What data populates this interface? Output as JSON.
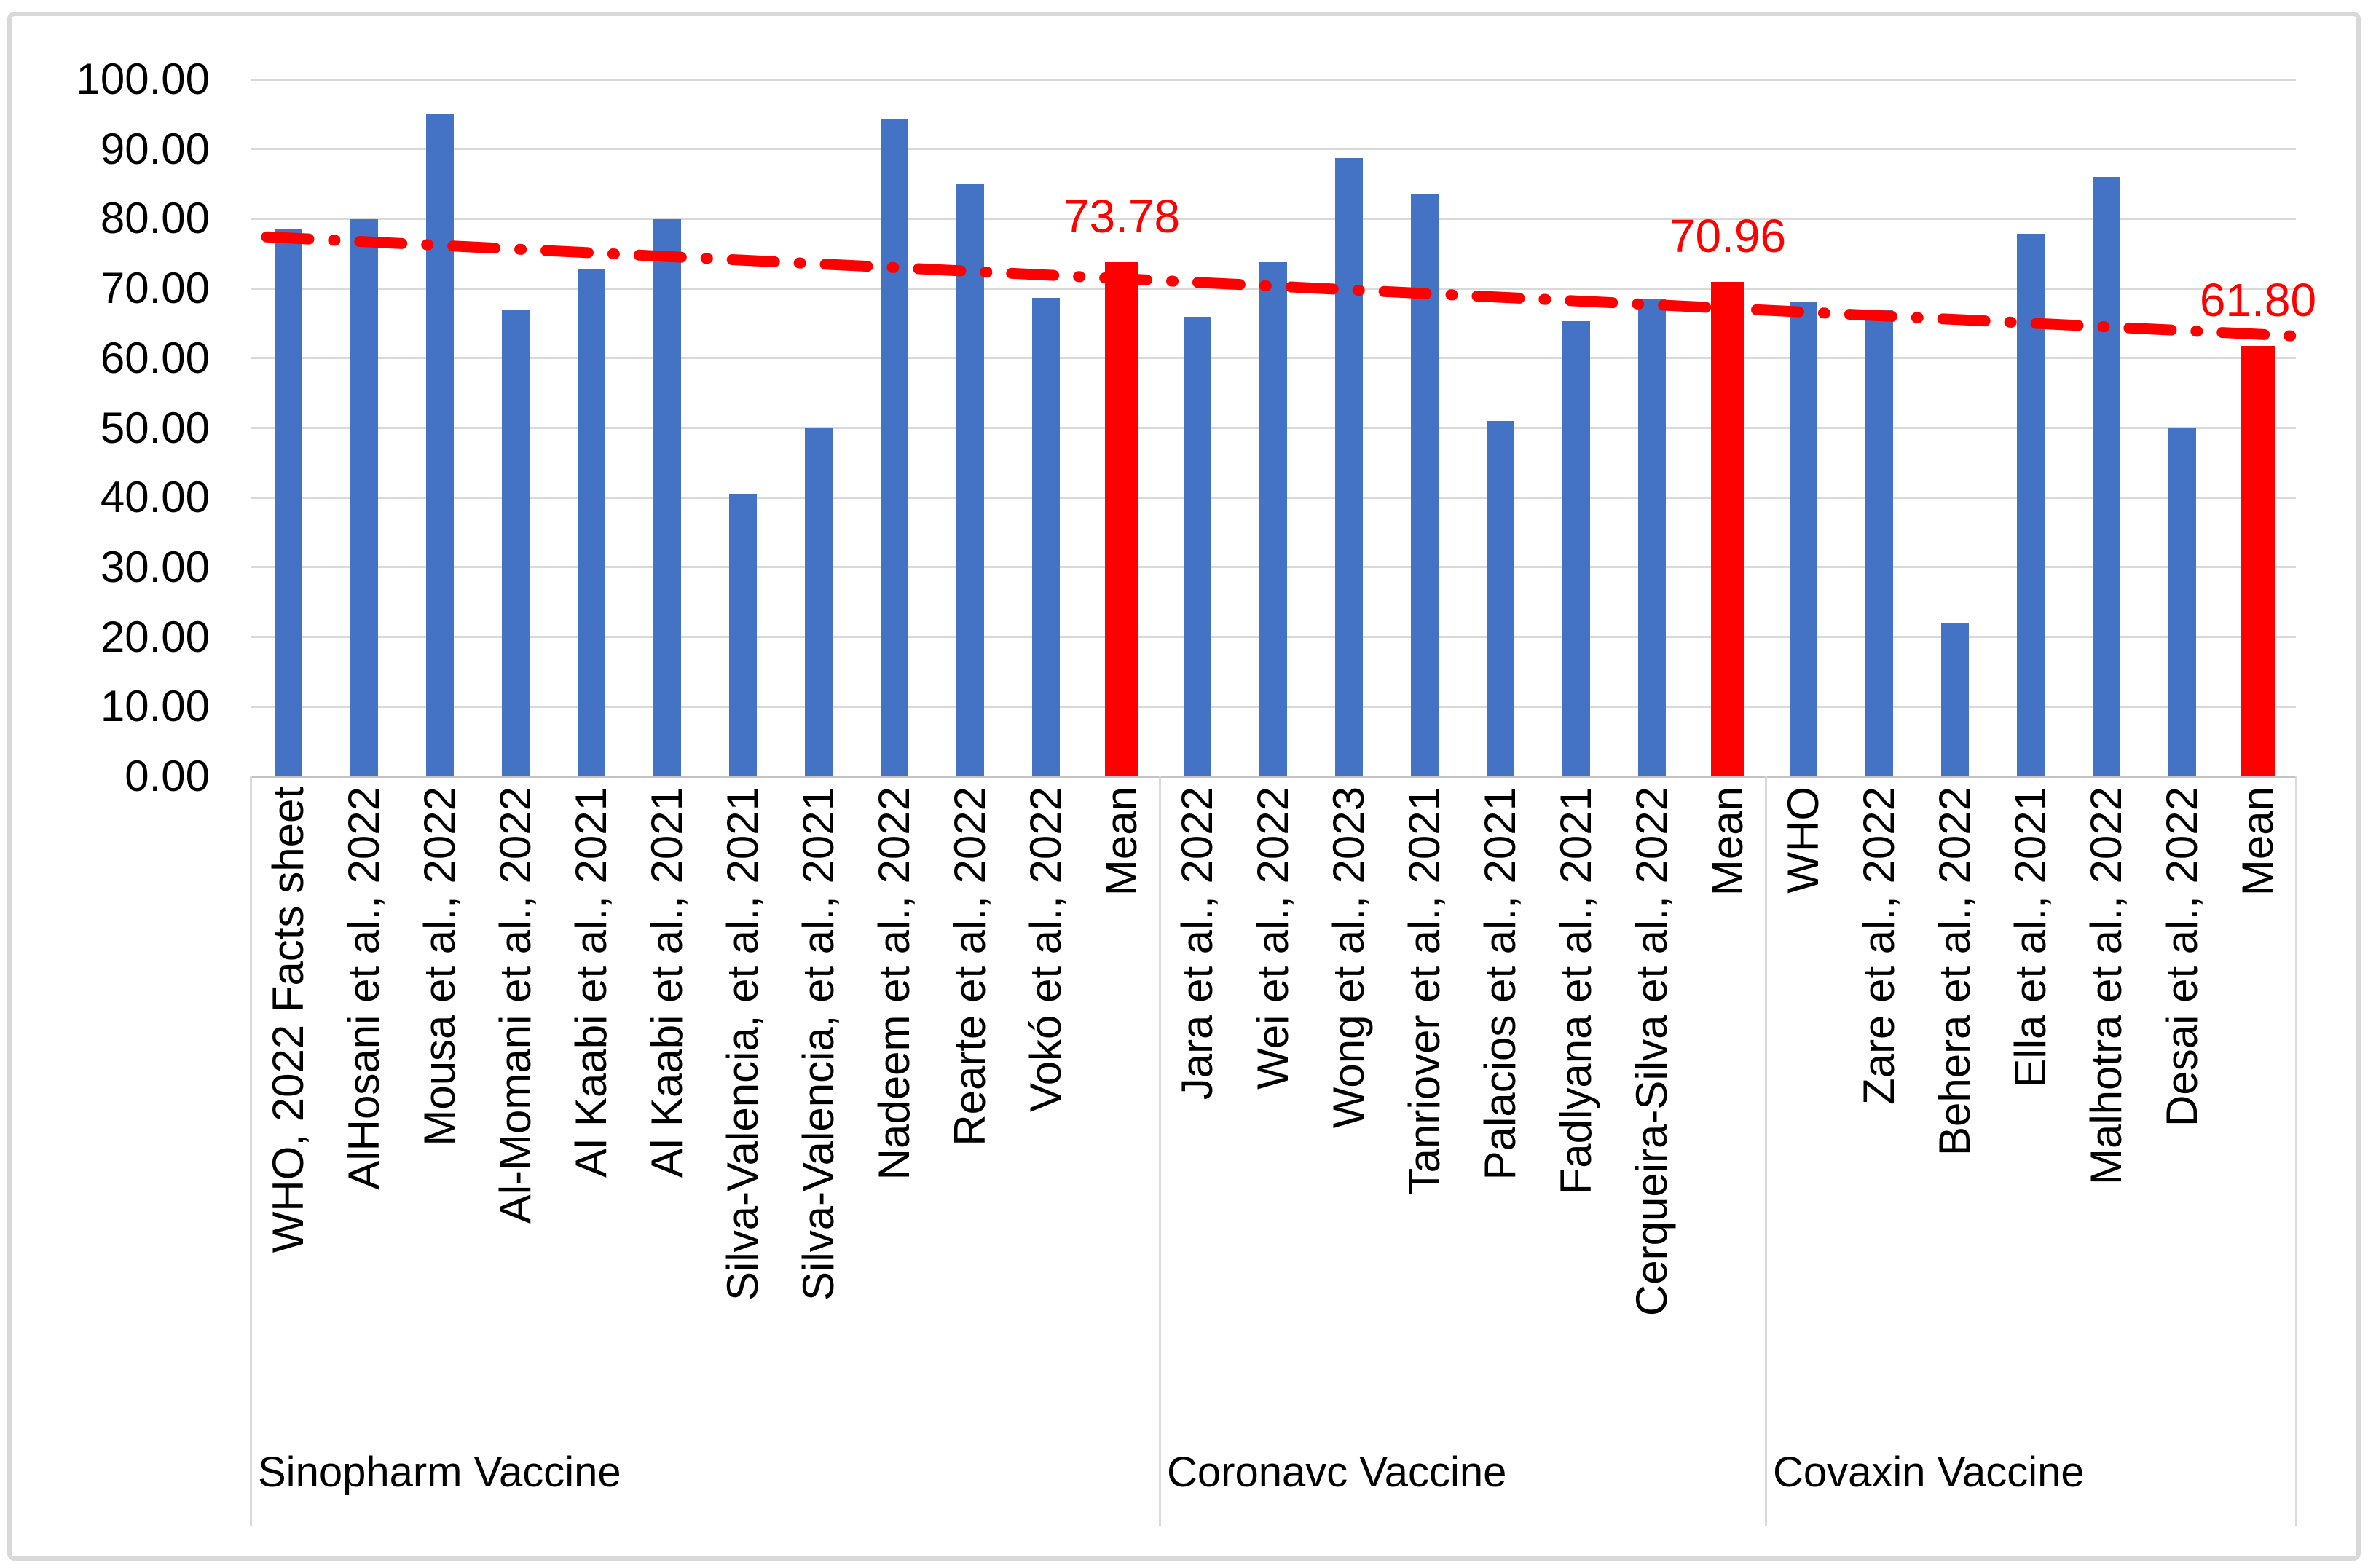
{
  "figure": {
    "background": "#FFFFFF",
    "border_color": "#D8D8D8"
  },
  "chart_data": {
    "type": "bar",
    "title": "",
    "xlabel": "",
    "ylabel": "",
    "ylim": [
      0,
      100
    ],
    "ytick_step": 10,
    "yticks": [
      "0.00",
      "10.00",
      "20.00",
      "30.00",
      "40.00",
      "50.00",
      "60.00",
      "70.00",
      "80.00",
      "90.00",
      "100.00"
    ],
    "grid": true,
    "legend_position": "none",
    "bar_color": "#4472C4",
    "mean_bar_color": "#FF0000",
    "gridline_color": "#D9D9D9",
    "text_color": "#000000",
    "groups": [
      {
        "label": "Sinopharm Vaccine",
        "mean_annotation": "73.78",
        "items": [
          {
            "label": "WHO, 2022 Facts sheet",
            "value": 78.6
          },
          {
            "label": "AlHosani et al., 2022",
            "value": 79.9
          },
          {
            "label": "Mousa et al., 2022",
            "value": 95.0
          },
          {
            "label": "Al-Momani et al., 2022",
            "value": 67.0
          },
          {
            "label": "Al Kaabi et al., 2021",
            "value": 72.8
          },
          {
            "label": "Al Kaabi et al., 2021",
            "value": 79.9
          },
          {
            "label": "Silva-Valencia, et al., 2021",
            "value": 40.5
          },
          {
            "label": "Silva-Valencia, et al., 2021",
            "value": 50.0
          },
          {
            "label": "Nadeem et al., 2022",
            "value": 94.3
          },
          {
            "label": "Rearte et al., 2022",
            "value": 85.0
          },
          {
            "label": "Vokó et al., 2022",
            "value": 68.6
          },
          {
            "label": "Mean",
            "value": 73.78,
            "is_mean": true
          }
        ]
      },
      {
        "label": "Coronavc Vaccine",
        "mean_annotation": "70.96",
        "items": [
          {
            "label": "Jara et al., 2022",
            "value": 65.9
          },
          {
            "label": "Wei et al., 2022",
            "value": 73.8
          },
          {
            "label": "Wong et al., 2023",
            "value": 88.7
          },
          {
            "label": "Tanriover et al., 2021",
            "value": 83.5
          },
          {
            "label": "Palacios et al., 2021",
            "value": 51.0
          },
          {
            "label": "Fadlyana et al., 2021",
            "value": 65.3
          },
          {
            "label": "Cerqueira-Silva et al., 2022",
            "value": 68.5
          },
          {
            "label": "Mean",
            "value": 70.96,
            "is_mean": true
          }
        ]
      },
      {
        "label": "Covaxin Vaccine",
        "mean_annotation": "61.80",
        "items": [
          {
            "label": "WHO",
            "value": 68.0
          },
          {
            "label": "Zare et al., 2022",
            "value": 67.0
          },
          {
            "label": "Behera et al., 2022",
            "value": 22.0
          },
          {
            "label": "Ella et al., 2021",
            "value": 77.8
          },
          {
            "label": "Malhotra et al., 2022",
            "value": 86.0
          },
          {
            "label": "Desai et al., 2022",
            "value": 50.0
          },
          {
            "label": "Mean",
            "value": 61.8,
            "is_mean": true
          }
        ]
      }
    ],
    "trendline": {
      "style": "long-dash-dot",
      "color": "#FF0000",
      "start_value": 77.4,
      "end_value": 63.2
    }
  }
}
